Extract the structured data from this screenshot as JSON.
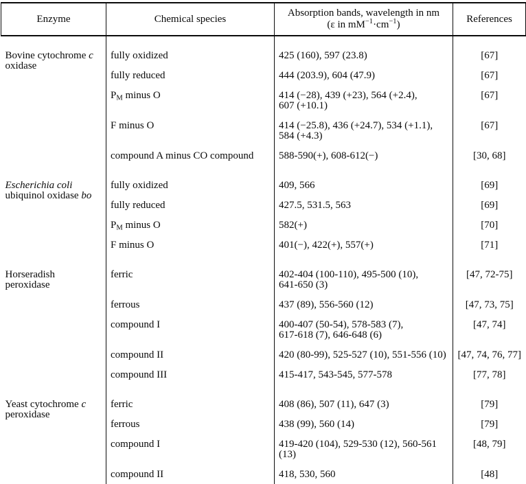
{
  "header": {
    "enzyme": "Enzyme",
    "species": "Chemical species",
    "bands_line1": "Absorption bands, wavelength in nm",
    "bands_line2": "(ε in mM^−1^·cm^−1^)",
    "refs": "References"
  },
  "groups": [
    {
      "enzyme": "Bovine cytochrome *c*\noxidase",
      "rows": [
        {
          "species": "fully oxidized",
          "bands": "425 (160), 597 (23.8)",
          "refs": "[67]"
        },
        {
          "species": "fully reduced",
          "bands": "444 (203.9), 604 (47.9)",
          "refs": "[67]"
        },
        {
          "species": "P~M~ minus O",
          "bands": "414 (−28), 439 (+23), 564 (+2.4),\n607 (+10.1)",
          "refs": "[67]"
        },
        {
          "species": "F minus O",
          "bands": "414 (−25.8), 436 (+24.7), 534 (+1.1),\n584 (+4.3)",
          "refs": "[67]"
        },
        {
          "species": "compound A minus CO compound",
          "bands": "588-590(+), 608-612(−)",
          "refs": "[30, 68]"
        }
      ]
    },
    {
      "enzyme": "*Escherichia coli*\nubiquinol oxidase *bo*",
      "rows": [
        {
          "species": "fully oxidized",
          "bands": "409, 566",
          "refs": "[69]"
        },
        {
          "species": "fully reduced",
          "bands": "427.5, 531.5, 563",
          "refs": "[69]"
        },
        {
          "species": "P~M~ minus O",
          "bands": "582(+)",
          "refs": "[70]"
        },
        {
          "species": "F minus O",
          "bands": "401(−), 422(+), 557(+)",
          "refs": "[71]"
        }
      ]
    },
    {
      "enzyme": "Horseradish\nperoxidase",
      "rows": [
        {
          "species": "ferric",
          "bands": "402-404 (100-110), 495-500 (10),\n641-650 (3)",
          "refs": "[47, 72-75]"
        },
        {
          "species": "ferrous",
          "bands": "437 (89), 556-560 (12)",
          "refs": "[47, 73, 75]"
        },
        {
          "species": "compound I",
          "bands": "400-407 (50-54), 578-583 (7),\n617-618 (7), 646-648 (6)",
          "refs": "[47, 74]"
        },
        {
          "species": "compound II",
          "bands": "420 (80-99), 525-527 (10), 551-556 (10)",
          "refs": "[47, 74, 76, 77]"
        },
        {
          "species": "compound III",
          "bands": "415-417, 543-545, 577-578",
          "refs": "[77, 78]"
        }
      ]
    },
    {
      "enzyme": "Yeast cytochrome *c*\n peroxidase",
      "rows": [
        {
          "species": "ferric",
          "bands": "408 (86), 507 (11), 647 (3)",
          "refs": "[79]"
        },
        {
          "species": "ferrous",
          "bands": "438 (99), 560 (14)",
          "refs": "[79]"
        },
        {
          "species": "compound I",
          "bands": "419-420 (104), 529-530 (12), 560-561 (13)",
          "refs": "[48, 79]"
        },
        {
          "species": "compound II",
          "bands": "418, 530, 560",
          "refs": "[48]"
        }
      ]
    }
  ]
}
